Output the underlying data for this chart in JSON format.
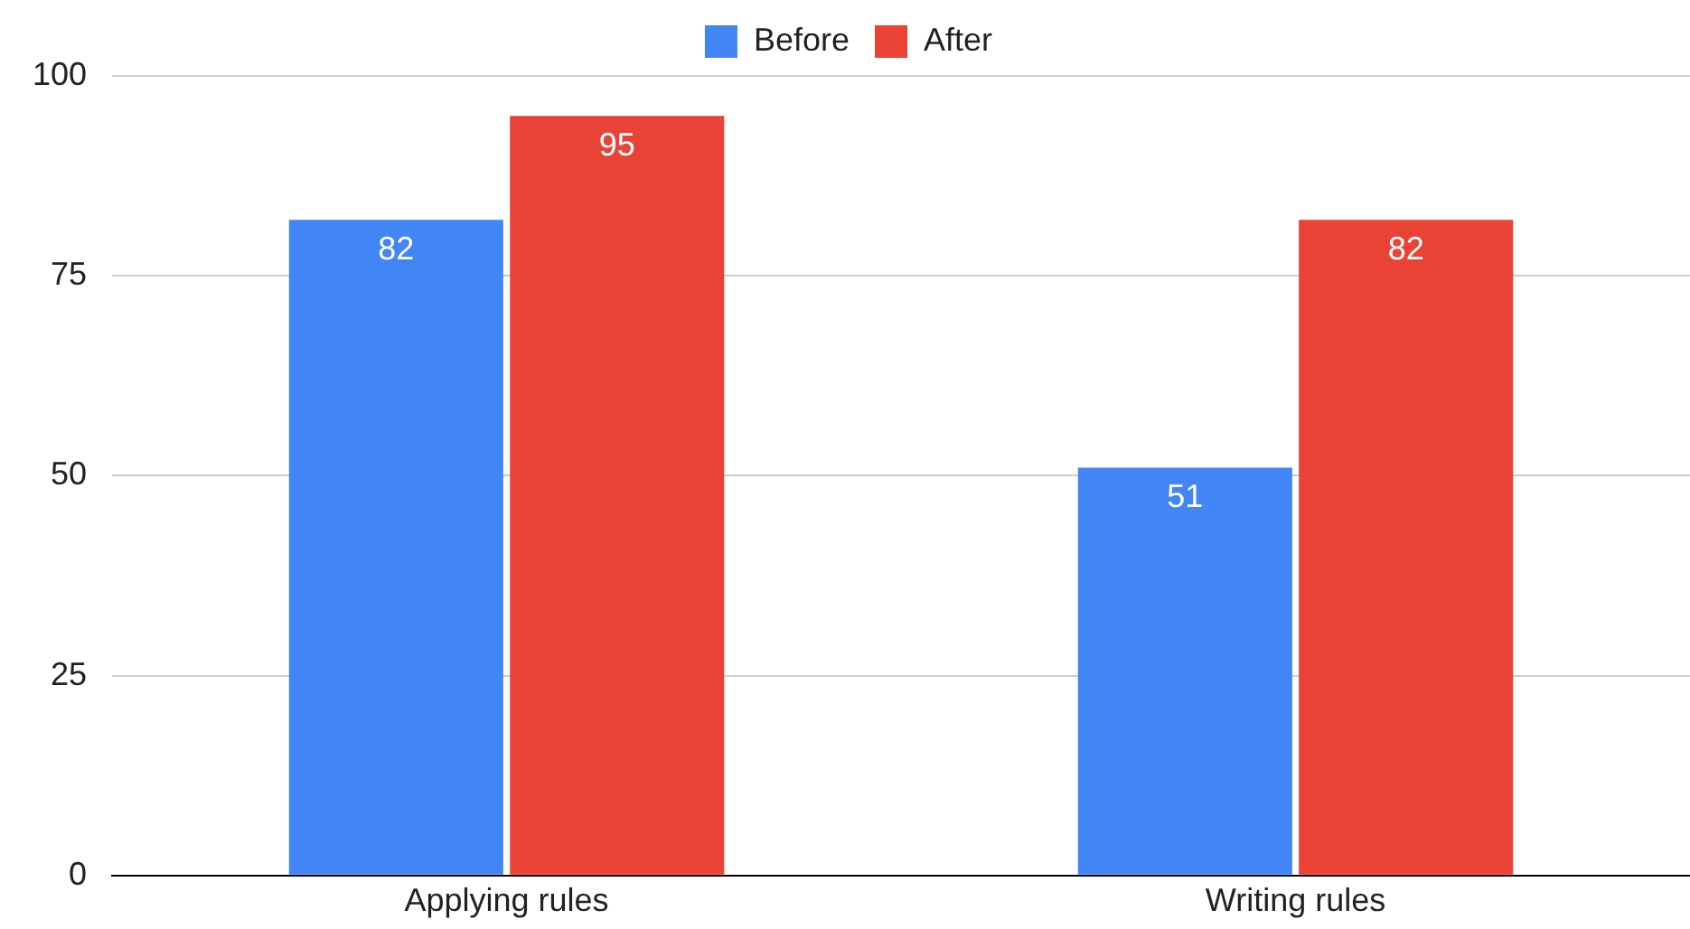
{
  "chart_data": {
    "type": "bar",
    "categories": [
      "Applying rules",
      "Writing rules"
    ],
    "series": [
      {
        "name": "Before",
        "color": "#4285f4",
        "values": [
          82,
          51
        ]
      },
      {
        "name": "After",
        "color": "#ea4335",
        "values": [
          95,
          82
        ]
      }
    ],
    "ylim": [
      0,
      100
    ],
    "yticks": [
      0,
      25,
      50,
      75,
      100
    ],
    "grid": "y",
    "legend": "top",
    "data_labels": true
  }
}
